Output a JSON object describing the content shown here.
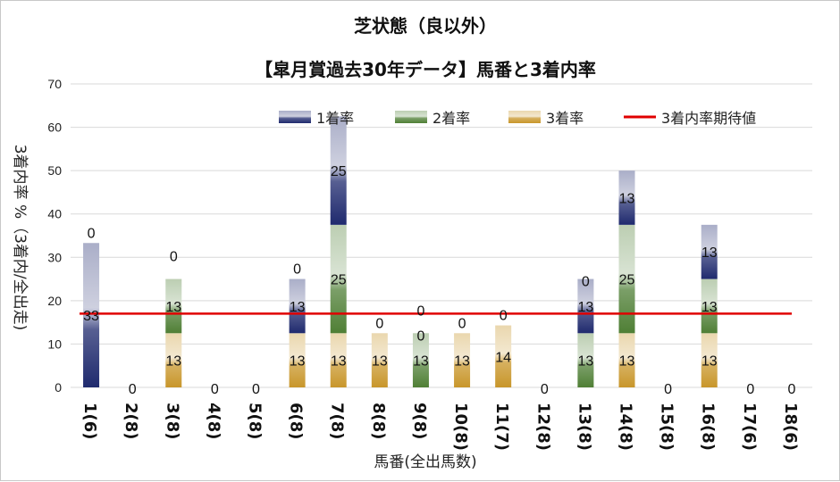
{
  "chart_data": {
    "type": "bar",
    "stacked": true,
    "title": "芝状態（良以外）",
    "subtitle": "【皐月賞過去30年データ】馬番と3着内率",
    "xlabel": "馬番(全出馬数)",
    "ylabel": "3着内率 %（3着内/全出走)",
    "ylim": [
      0,
      70
    ],
    "yticks": [
      0,
      10,
      20,
      30,
      40,
      50,
      60,
      70
    ],
    "grid": true,
    "legend_position": "top-right",
    "categories": [
      "1(6)",
      "2(8)",
      "3(8)",
      "4(8)",
      "5(8)",
      "6(8)",
      "7(8)",
      "8(8)",
      "9(8)",
      "10(8)",
      "11(7)",
      "12(8)",
      "13(8)",
      "14(8)",
      "15(8)",
      "16(8)",
      "17(6)",
      "18(6)"
    ],
    "series": [
      {
        "name": "3着率",
        "color": "#c8962a",
        "values": [
          0,
          0,
          12.5,
          0,
          0,
          12.5,
          12.5,
          12.5,
          0,
          12.5,
          14.3,
          0,
          0,
          12.5,
          0,
          12.5,
          0,
          0
        ]
      },
      {
        "name": "2着率",
        "color": "#4f7f35",
        "values": [
          0,
          0,
          12.5,
          0,
          0,
          0,
          25,
          0,
          12.5,
          0,
          0,
          0,
          12.5,
          25,
          0,
          12.5,
          0,
          0
        ]
      },
      {
        "name": "1着率",
        "color": "#1f2a6e",
        "values": [
          33.3,
          0,
          0,
          0,
          0,
          12.5,
          25,
          0,
          0,
          0,
          0,
          0,
          12.5,
          12.5,
          0,
          12.5,
          0,
          0
        ]
      }
    ],
    "expected_line": {
      "name": "3着内率期待値",
      "color": "#e00000",
      "value": 17
    },
    "data_labels": [
      {
        "cat": 0,
        "series": "1着率",
        "text": "33"
      },
      {
        "cat": 0,
        "series": "2着率",
        "text": "0"
      },
      {
        "cat": 1,
        "series": "2着率",
        "text": "0"
      },
      {
        "cat": 2,
        "series": "3着率",
        "text": "13"
      },
      {
        "cat": 2,
        "series": "2着率",
        "text": "13"
      },
      {
        "cat": 2,
        "series": "1着率",
        "text": "0"
      },
      {
        "cat": 3,
        "series": "2着率",
        "text": "0"
      },
      {
        "cat": 4,
        "series": "2着率",
        "text": "0"
      },
      {
        "cat": 5,
        "series": "3着率",
        "text": "13"
      },
      {
        "cat": 5,
        "series": "2着率",
        "text": "0"
      },
      {
        "cat": 5,
        "series": "1着率",
        "text": "13"
      },
      {
        "cat": 6,
        "series": "3着率",
        "text": "13"
      },
      {
        "cat": 6,
        "series": "2着率",
        "text": "25"
      },
      {
        "cat": 6,
        "series": "1着率",
        "text": "25"
      },
      {
        "cat": 7,
        "series": "3着率",
        "text": "13"
      },
      {
        "cat": 7,
        "series": "2着率",
        "text": "0"
      },
      {
        "cat": 8,
        "series": "2着率",
        "text": "13"
      },
      {
        "cat": 8,
        "series": "3着率",
        "text": "0"
      },
      {
        "cat": 8,
        "series": "1着率",
        "text": "0"
      },
      {
        "cat": 9,
        "series": "3着率",
        "text": "13"
      },
      {
        "cat": 9,
        "series": "2着率",
        "text": "0"
      },
      {
        "cat": 10,
        "series": "3着率",
        "text": "14"
      },
      {
        "cat": 10,
        "series": "2着率",
        "text": "0"
      },
      {
        "cat": 11,
        "series": "2着率",
        "text": "0"
      },
      {
        "cat": 12,
        "series": "2着率",
        "text": "13"
      },
      {
        "cat": 12,
        "series": "1着率",
        "text": "13"
      },
      {
        "cat": 12,
        "series": "3着率",
        "text": "0"
      },
      {
        "cat": 13,
        "series": "3着率",
        "text": "13"
      },
      {
        "cat": 13,
        "series": "2着率",
        "text": "25"
      },
      {
        "cat": 13,
        "series": "1着率",
        "text": "13"
      },
      {
        "cat": 14,
        "series": "2着率",
        "text": "0"
      },
      {
        "cat": 15,
        "series": "3着率",
        "text": "13"
      },
      {
        "cat": 15,
        "series": "2着率",
        "text": "13"
      },
      {
        "cat": 15,
        "series": "1着率",
        "text": "13"
      },
      {
        "cat": 16,
        "series": "2着率",
        "text": "0"
      },
      {
        "cat": 17,
        "series": "2着率",
        "text": "0"
      }
    ]
  }
}
